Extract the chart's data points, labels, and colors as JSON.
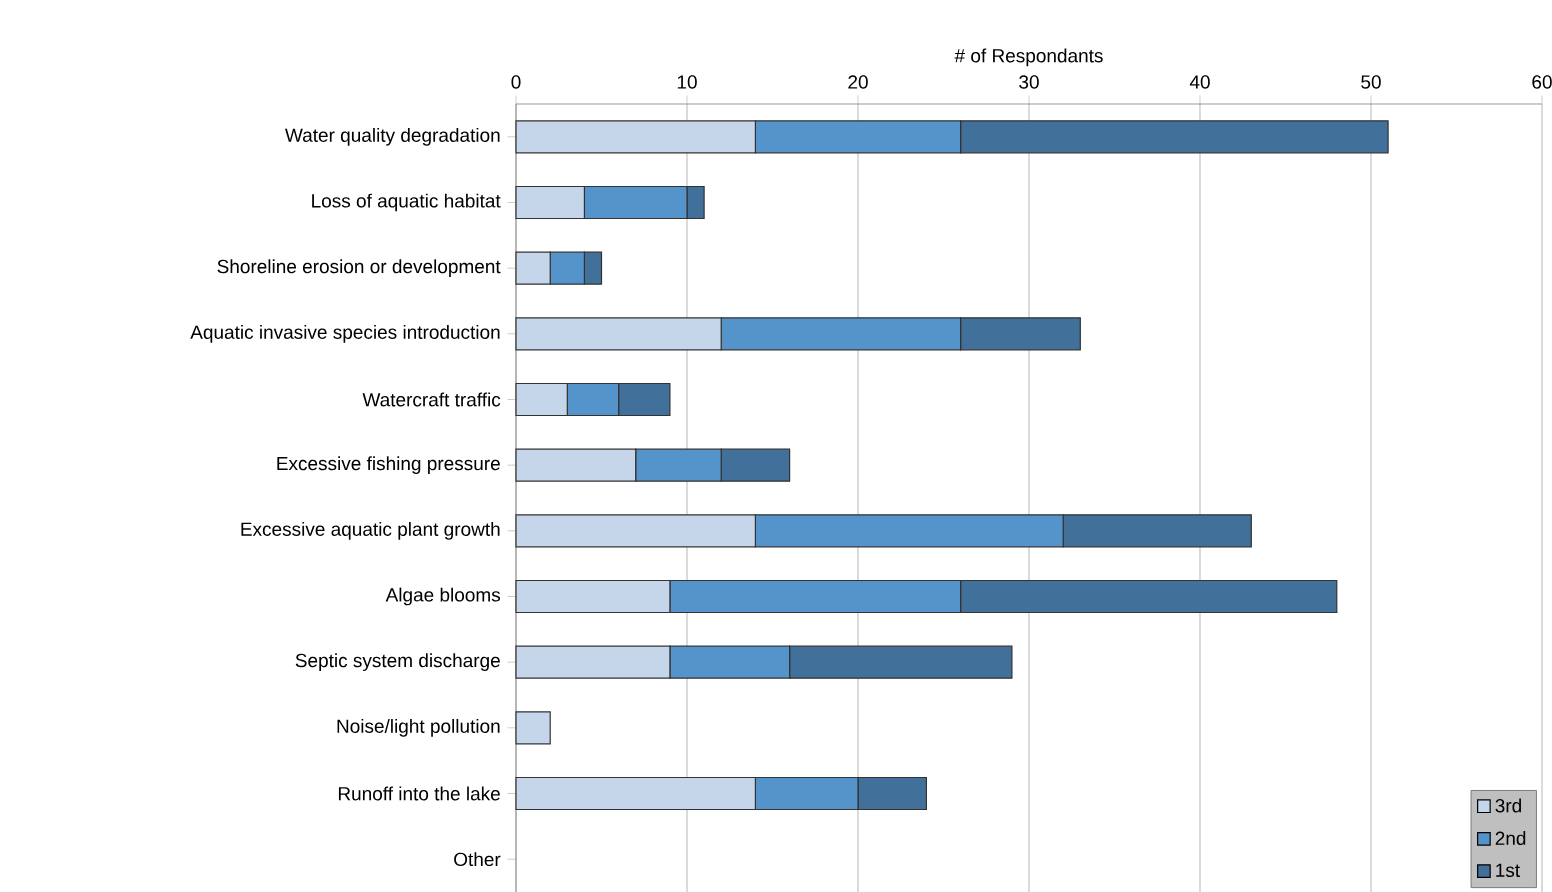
{
  "chart_data": {
    "type": "bar",
    "orientation": "horizontal",
    "stacked": true,
    "xlabel": "# of Respondants",
    "categories": [
      "Water quality degradation",
      "Loss of aquatic habitat",
      "Shoreline erosion or development",
      "Aquatic invasive species introduction",
      "Watercraft traffic",
      "Excessive fishing pressure",
      "Excessive aquatic plant growth",
      "Algae blooms",
      "Septic system discharge",
      "Noise/light pollution",
      "Runoff into the lake",
      "Other"
    ],
    "series": [
      {
        "name": "3rd",
        "color": "#c5d5ea",
        "values": [
          14,
          4,
          2,
          12,
          3,
          7,
          14,
          9,
          9,
          2,
          14,
          0
        ]
      },
      {
        "name": "2nd",
        "color": "#5593cb",
        "values": [
          12,
          6,
          2,
          14,
          3,
          5,
          18,
          17,
          7,
          0,
          6,
          0
        ]
      },
      {
        "name": "1st",
        "color": "#41709b",
        "values": [
          25,
          1,
          1,
          7,
          3,
          4,
          11,
          22,
          13,
          0,
          4,
          0
        ]
      }
    ],
    "xlim": [
      0,
      60
    ],
    "xticks": [
      0,
      10,
      20,
      30,
      40,
      50,
      60
    ],
    "grid": "x",
    "legend": "bottom right"
  }
}
